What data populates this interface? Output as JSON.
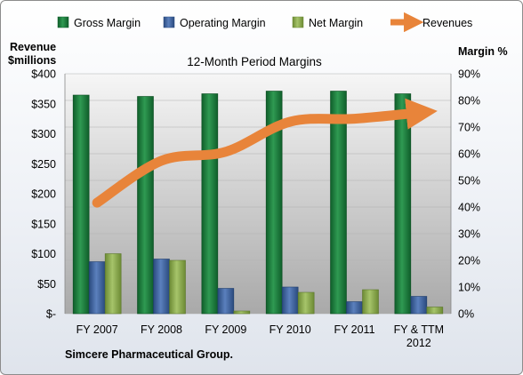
{
  "chart_data": {
    "type": "bar",
    "title": "12-Month Period Margins",
    "categories": [
      "FY 2007",
      "FY 2008",
      "FY 2009",
      "FY 2010",
      "FY 2011",
      "FY & TTM 2012"
    ],
    "series": [
      {
        "name": "Gross Margin",
        "axis": "right",
        "values": [
          82,
          81.5,
          82.5,
          83.5,
          83.5,
          82.5
        ],
        "color": "#1e7a3c"
      },
      {
        "name": "Operating Margin",
        "axis": "right",
        "values": [
          19.5,
          20.5,
          9.5,
          10,
          4.5,
          6.5
        ],
        "color": "#3a5f9c"
      },
      {
        "name": "Net Margin",
        "axis": "right",
        "values": [
          22.5,
          20,
          1,
          8,
          9,
          2.5
        ],
        "color": "#8aa84c"
      },
      {
        "name": "Revenues",
        "axis": "left",
        "type": "line",
        "values": [
          185,
          255,
          270,
          320,
          325,
          335
        ],
        "color": "#e8843a"
      }
    ],
    "ylabel_left": "Revenue\n$millions",
    "ylabel_right": "Margin %",
    "ylim_left": [
      0,
      400
    ],
    "ylim_right": [
      0,
      90
    ],
    "left_ticks": [
      "$-",
      "$50",
      "$100",
      "$150",
      "$200",
      "$250",
      "$300",
      "$350",
      "$400"
    ],
    "right_ticks": [
      "0%",
      "10%",
      "20%",
      "30%",
      "40%",
      "50%",
      "60%",
      "70%",
      "80%",
      "90%"
    ],
    "legend_position": "top",
    "grid": true,
    "source_label": "Simcere Pharmaceutical  Group."
  }
}
